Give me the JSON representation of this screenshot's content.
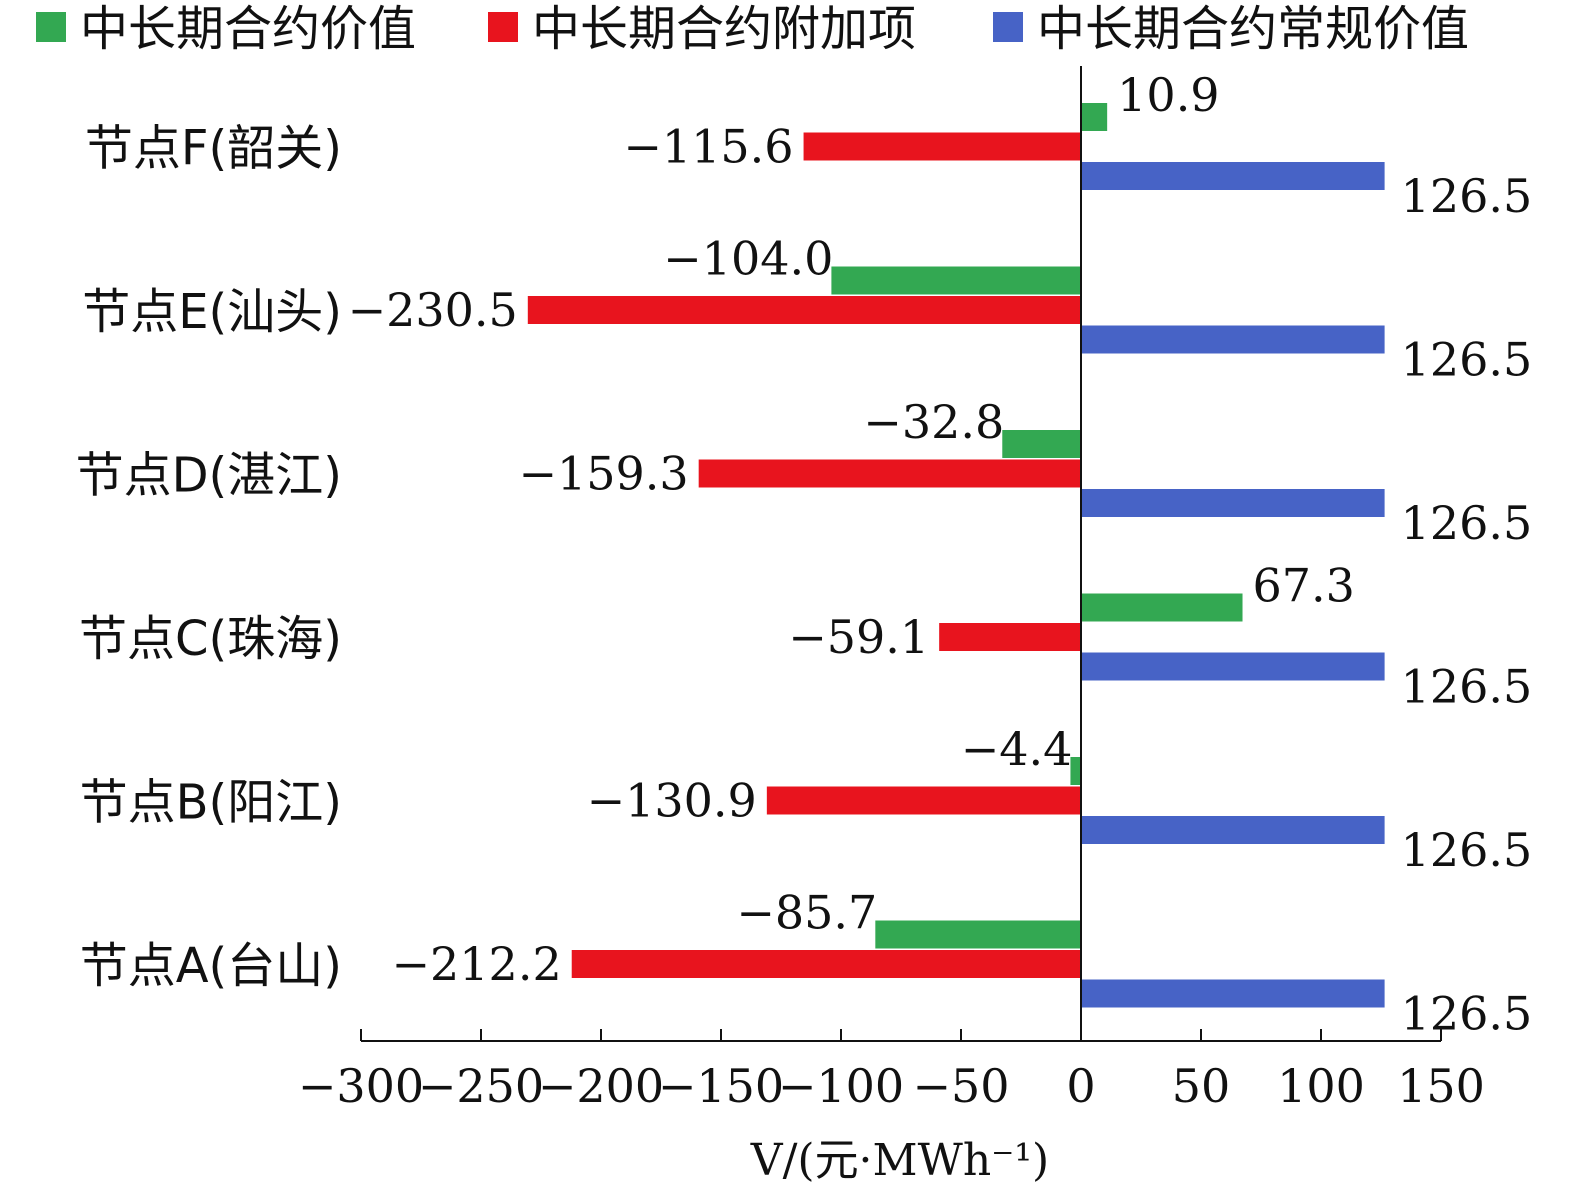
{
  "chart_data": {
    "type": "bar",
    "orientation": "horizontal",
    "xlabel": "V/(元·MWh⁻¹)",
    "xlim": [
      -300,
      150
    ],
    "xticks": [
      -300,
      -250,
      -200,
      -150,
      -100,
      -50,
      0,
      50,
      100,
      150
    ],
    "xtick_labels": [
      "−300",
      "−250",
      "−200",
      "−150",
      "−100",
      "−50",
      "0",
      "50",
      "100",
      "150"
    ],
    "categories": [
      "节点F(韶关)",
      "节点E(汕头)",
      "节点D(湛江)",
      "节点C(珠海)",
      "节点B(阳江)",
      "节点A(台山)"
    ],
    "legend_position": "top",
    "series": [
      {
        "name": "中长期合约价值",
        "color": "#33a852",
        "values": [
          10.9,
          -104.0,
          -32.8,
          67.3,
          -4.4,
          -85.7
        ],
        "labels": [
          "10.9",
          "−104.0",
          "−32.8",
          "67.3",
          "−4.4",
          "−85.7"
        ]
      },
      {
        "name": "中长期合约附加项",
        "color": "#e8141e",
        "values": [
          -115.6,
          -230.5,
          -159.3,
          -59.1,
          -130.9,
          -212.2
        ],
        "labels": [
          "−115.6",
          "−230.5",
          "−159.3",
          "−59.1",
          "−130.9",
          "−212.2"
        ]
      },
      {
        "name": "中长期合约常规价值",
        "color": "#4763c6",
        "values": [
          126.5,
          126.5,
          126.5,
          126.5,
          126.5,
          126.5
        ],
        "labels": [
          "126.5",
          "126.5",
          "126.5",
          "126.5",
          "126.5",
          "126.5"
        ]
      }
    ]
  }
}
